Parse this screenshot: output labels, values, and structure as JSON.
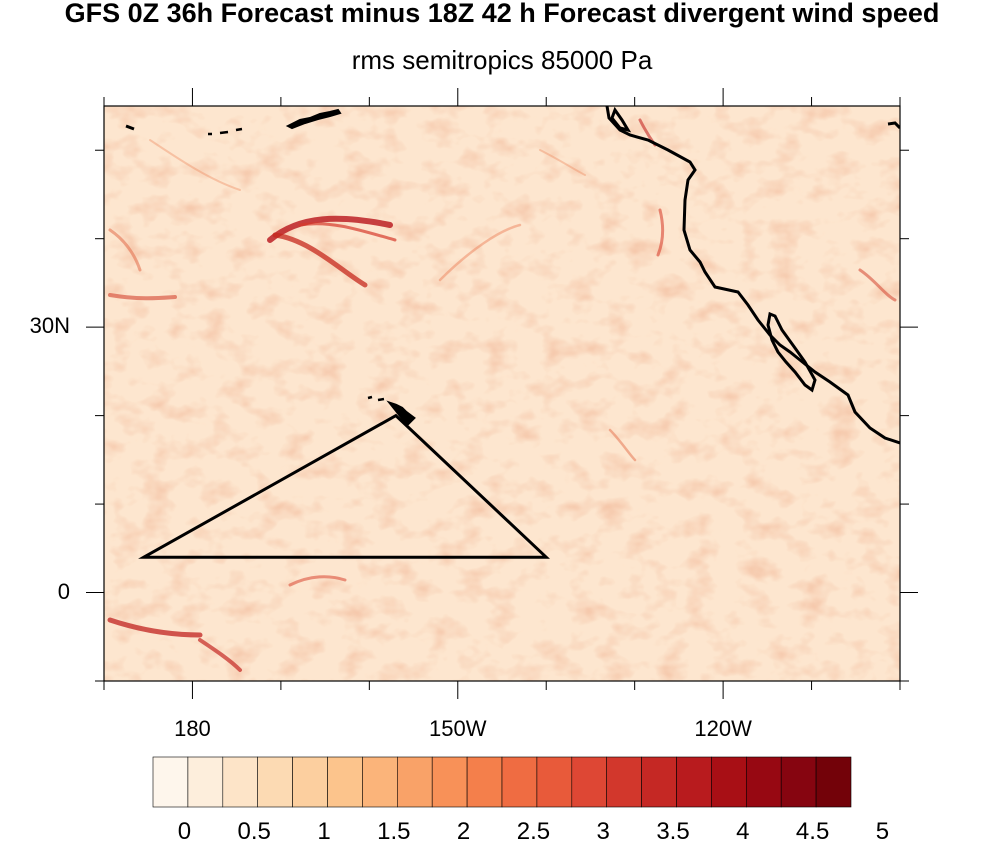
{
  "title": "GFS 0Z 36h Forecast minus 18Z 42 h Forecast divergent wind speed",
  "subtitle": "rms semitropics 85000 Pa",
  "lat_ticks": [
    {
      "label": "30N",
      "lat": 30
    },
    {
      "label": "0",
      "lat": 0
    }
  ],
  "lon_ticks": [
    {
      "label": "180",
      "lon": 180
    },
    {
      "label": "150W",
      "lon": -150
    },
    {
      "label": "120W",
      "lon": -120
    }
  ],
  "map_extent": {
    "lon_min": 170,
    "lon_max": -100,
    "lat_min": -10,
    "lat_max": 55
  },
  "region_triangle": [
    {
      "lon": 174.5,
      "lat": 4
    },
    {
      "lon": -157,
      "lat": 20
    },
    {
      "lon": -140,
      "lat": 4
    }
  ],
  "colorbar": {
    "labels": [
      "0",
      "0.5",
      "1",
      "1.5",
      "2",
      "2.5",
      "3",
      "3.5",
      "4",
      "4.5",
      "5"
    ],
    "colors": [
      "#fef6ec",
      "#fdeedc",
      "#fde4c8",
      "#fcdab3",
      "#fccf9f",
      "#fcc48c",
      "#fbb47a",
      "#f9a268",
      "#f89158",
      "#f47f4b",
      "#ef6c42",
      "#e85a3a",
      "#de4734",
      "#d2372c",
      "#c52824",
      "#b81b1e",
      "#a80f15",
      "#970812",
      "#860510",
      "#730209"
    ]
  },
  "colors": {
    "background": "#fde6cf",
    "coast": "#000000"
  }
}
